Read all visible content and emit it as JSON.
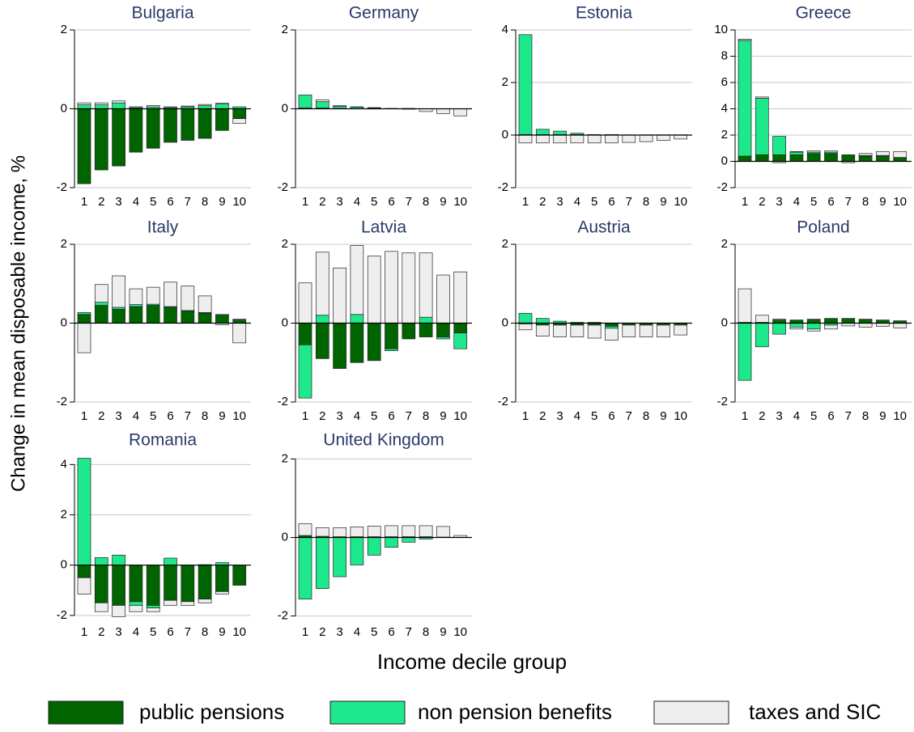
{
  "ylabel": "Change in mean disposable income, %",
  "xlabel": "Income decile group",
  "chart_data": [
    {
      "type": "bar",
      "title": "Bulgaria",
      "categories": [
        "1",
        "2",
        "3",
        "4",
        "5",
        "6",
        "7",
        "8",
        "9",
        "10"
      ],
      "ylim": [
        -2,
        2
      ],
      "yticks": [
        -2,
        0,
        2
      ],
      "series": [
        {
          "name": "public pensions",
          "color": "#006400",
          "values": [
            -1.9,
            -1.55,
            -1.45,
            -1.1,
            -1.0,
            -0.85,
            -0.8,
            -0.75,
            -0.55,
            -0.25
          ]
        },
        {
          "name": "non pension benefits",
          "color": "#1ee88c",
          "values": [
            0.1,
            0.1,
            0.15,
            0.03,
            0.05,
            0.03,
            0.05,
            0.08,
            0.12,
            0.05
          ]
        },
        {
          "name": "taxes and SIC",
          "color": "#eeeeee",
          "values": [
            0.05,
            0.05,
            0.05,
            0.02,
            0.03,
            0.02,
            0.02,
            0.03,
            0.02,
            -0.12
          ]
        }
      ]
    },
    {
      "type": "bar",
      "title": "Germany",
      "categories": [
        "1",
        "2",
        "3",
        "4",
        "5",
        "6",
        "7",
        "8",
        "9",
        "10"
      ],
      "ylim": [
        -2,
        2
      ],
      "yticks": [
        -2,
        0,
        2
      ],
      "series": [
        {
          "name": "public pensions",
          "color": "#006400",
          "values": [
            0.02,
            0.02,
            0.01,
            0,
            0,
            0,
            0,
            0,
            0,
            0
          ]
        },
        {
          "name": "non pension benefits",
          "color": "#1ee88c",
          "values": [
            0.33,
            0.16,
            0.05,
            0.04,
            0.02,
            0.01,
            0.01,
            0,
            0,
            0
          ]
        },
        {
          "name": "taxes and SIC",
          "color": "#eeeeee",
          "values": [
            0,
            0.05,
            0.02,
            0.01,
            0.01,
            0,
            -0.01,
            -0.07,
            -0.12,
            -0.18
          ]
        }
      ]
    },
    {
      "type": "bar",
      "title": "Estonia",
      "categories": [
        "1",
        "2",
        "3",
        "4",
        "5",
        "6",
        "7",
        "8",
        "9",
        "10"
      ],
      "ylim": [
        -2,
        4
      ],
      "yticks": [
        -2,
        0,
        2,
        4
      ],
      "series": [
        {
          "name": "public pensions",
          "color": "#006400",
          "values": [
            0.02,
            0.02,
            0.02,
            0.02,
            0.01,
            0.01,
            0.01,
            0.01,
            0.01,
            0.01
          ]
        },
        {
          "name": "non pension benefits",
          "color": "#1ee88c",
          "values": [
            3.8,
            0.2,
            0.13,
            0.05,
            0.01,
            0.01,
            0,
            0,
            0,
            0
          ]
        },
        {
          "name": "taxes and SIC",
          "color": "#eeeeee",
          "values": [
            -0.3,
            -0.3,
            -0.3,
            -0.3,
            -0.3,
            -0.3,
            -0.28,
            -0.25,
            -0.2,
            -0.15
          ]
        }
      ]
    },
    {
      "type": "bar",
      "title": "Greece",
      "categories": [
        "1",
        "2",
        "3",
        "4",
        "5",
        "6",
        "7",
        "8",
        "9",
        "10"
      ],
      "ylim": [
        -2,
        10
      ],
      "yticks": [
        -2,
        0,
        2,
        4,
        6,
        8,
        10
      ],
      "series": [
        {
          "name": "public pensions",
          "color": "#006400",
          "values": [
            0.4,
            0.5,
            0.5,
            0.5,
            0.6,
            0.6,
            0.5,
            0.4,
            0.4,
            0.3
          ]
        },
        {
          "name": "non pension benefits",
          "color": "#1ee88c",
          "values": [
            8.8,
            4.3,
            1.4,
            0.2,
            0.1,
            0.1,
            0,
            0.05,
            0.05,
            0
          ]
        },
        {
          "name": "taxes and SIC",
          "color": "#eeeeee",
          "values": [
            0.1,
            0.1,
            -0.1,
            0.05,
            0.1,
            0.1,
            -0.1,
            0.15,
            0.3,
            0.45
          ]
        }
      ]
    },
    {
      "type": "bar",
      "title": "Italy",
      "categories": [
        "1",
        "2",
        "3",
        "4",
        "5",
        "6",
        "7",
        "8",
        "9",
        "10"
      ],
      "ylim": [
        -2,
        2
      ],
      "yticks": [
        -2,
        0,
        2
      ],
      "series": [
        {
          "name": "public pensions",
          "color": "#006400",
          "values": [
            0.22,
            0.45,
            0.35,
            0.42,
            0.45,
            0.4,
            0.3,
            0.25,
            0.2,
            0.08
          ]
        },
        {
          "name": "non pension benefits",
          "color": "#1ee88c",
          "values": [
            0.05,
            0.08,
            0.05,
            0.05,
            0.03,
            0.02,
            0.02,
            0.02,
            0.02,
            0.02
          ]
        },
        {
          "name": "taxes and SIC",
          "color": "#eeeeee",
          "values": [
            -0.75,
            0.45,
            0.8,
            0.4,
            0.43,
            0.62,
            0.62,
            0.42,
            -0.04,
            -0.5
          ]
        }
      ]
    },
    {
      "type": "bar",
      "title": "Latvia",
      "categories": [
        "1",
        "2",
        "3",
        "4",
        "5",
        "6",
        "7",
        "8",
        "9",
        "10"
      ],
      "ylim": [
        -2,
        2
      ],
      "yticks": [
        -2,
        0,
        2
      ],
      "series": [
        {
          "name": "public pensions",
          "color": "#006400",
          "values": [
            -0.55,
            -0.9,
            -1.15,
            -1.0,
            -0.95,
            -0.65,
            -0.4,
            -0.35,
            -0.35,
            -0.25
          ]
        },
        {
          "name": "non pension benefits",
          "color": "#1ee88c",
          "values": [
            -1.35,
            0.2,
            0,
            0.22,
            0,
            -0.05,
            0,
            0.15,
            -0.05,
            -0.4
          ]
        },
        {
          "name": "taxes and SIC",
          "color": "#eeeeee",
          "values": [
            1.02,
            1.6,
            1.4,
            1.75,
            1.7,
            1.82,
            1.78,
            1.63,
            1.22,
            1.3
          ]
        }
      ]
    },
    {
      "type": "bar",
      "title": "Austria",
      "categories": [
        "1",
        "2",
        "3",
        "4",
        "5",
        "6",
        "7",
        "8",
        "9",
        "10"
      ],
      "ylim": [
        -2,
        2
      ],
      "yticks": [
        -2,
        0,
        2
      ],
      "series": [
        {
          "name": "public pensions",
          "color": "#006400",
          "values": [
            -0.02,
            -0.05,
            -0.05,
            -0.05,
            -0.05,
            -0.08,
            -0.05,
            -0.05,
            -0.05,
            -0.05
          ]
        },
        {
          "name": "non pension benefits",
          "color": "#1ee88c",
          "values": [
            0.25,
            0.12,
            0.05,
            0.02,
            0.02,
            -0.05,
            0,
            0,
            0,
            0
          ]
        },
        {
          "name": "taxes and SIC",
          "color": "#eeeeee",
          "values": [
            -0.15,
            -0.28,
            -0.3,
            -0.3,
            -0.33,
            -0.3,
            -0.3,
            -0.3,
            -0.3,
            -0.25
          ]
        }
      ]
    },
    {
      "type": "bar",
      "title": "Poland",
      "categories": [
        "1",
        "2",
        "3",
        "4",
        "5",
        "6",
        "7",
        "8",
        "9",
        "10"
      ],
      "ylim": [
        -2,
        2
      ],
      "yticks": [
        -2,
        0,
        2
      ],
      "series": [
        {
          "name": "public pensions",
          "color": "#006400",
          "values": [
            0.02,
            0.02,
            0.08,
            0.08,
            0.1,
            0.12,
            0.12,
            0.1,
            0.08,
            0.06
          ]
        },
        {
          "name": "non pension benefits",
          "color": "#1ee88c",
          "values": [
            -1.45,
            -0.6,
            -0.28,
            -0.1,
            -0.15,
            -0.05,
            0,
            0,
            0,
            0
          ]
        },
        {
          "name": "taxes and SIC",
          "color": "#eeeeee",
          "values": [
            0.85,
            0.18,
            0.02,
            -0.05,
            -0.05,
            -0.1,
            -0.07,
            -0.1,
            -0.08,
            -0.12
          ]
        }
      ]
    },
    {
      "type": "bar",
      "title": "Romania",
      "categories": [
        "1",
        "2",
        "3",
        "4",
        "5",
        "6",
        "7",
        "8",
        "9",
        "10"
      ],
      "ylim": [
        -2.1,
        4.3
      ],
      "yticks": [
        -2,
        0,
        2,
        4
      ],
      "series": [
        {
          "name": "public pensions",
          "color": "#006400",
          "values": [
            -0.5,
            -1.5,
            -1.6,
            -1.45,
            -1.6,
            -1.4,
            -1.45,
            -1.35,
            -1.05,
            -0.8
          ]
        },
        {
          "name": "non pension benefits",
          "color": "#1ee88c",
          "values": [
            4.25,
            0.3,
            0.4,
            -0.15,
            -0.1,
            0.28,
            0,
            0.02,
            0.1,
            0
          ]
        },
        {
          "name": "taxes and SIC",
          "color": "#eeeeee",
          "values": [
            -0.65,
            -0.35,
            -0.45,
            -0.25,
            -0.15,
            -0.2,
            -0.15,
            -0.15,
            -0.1,
            0
          ]
        }
      ]
    },
    {
      "type": "bar",
      "title": "United Kingdom",
      "categories": [
        "1",
        "2",
        "3",
        "4",
        "5",
        "6",
        "7",
        "8",
        "9",
        "10"
      ],
      "ylim": [
        -2.05,
        2.05
      ],
      "yticks": [
        -2,
        0,
        2
      ],
      "series": [
        {
          "name": "public pensions",
          "color": "#006400",
          "values": [
            0.05,
            0.03,
            0.02,
            0.02,
            0.02,
            0.02,
            0.02,
            0.02,
            0.01,
            0
          ]
        },
        {
          "name": "non pension benefits",
          "color": "#1ee88c",
          "values": [
            -1.57,
            -1.3,
            -1.0,
            -0.7,
            -0.45,
            -0.25,
            -0.12,
            -0.04,
            0,
            0
          ]
        },
        {
          "name": "taxes and SIC",
          "color": "#eeeeee",
          "values": [
            0.3,
            0.22,
            0.23,
            0.25,
            0.27,
            0.28,
            0.28,
            0.28,
            0.27,
            0.05
          ]
        }
      ]
    }
  ]
}
